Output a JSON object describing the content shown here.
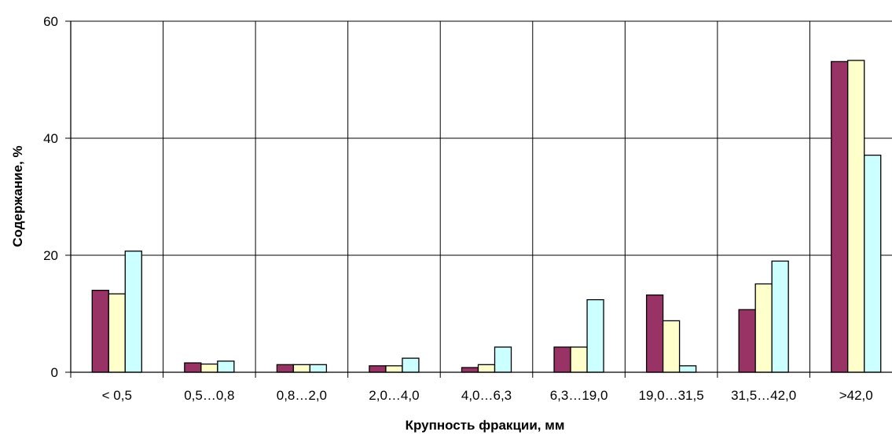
{
  "chart_data": {
    "type": "bar",
    "title": "",
    "xlabel": "Крупность фракции, мм",
    "ylabel": "Содержание, %",
    "ylim": [
      0,
      60
    ],
    "yticks": [
      "0",
      "20",
      "40",
      "60"
    ],
    "grid": true,
    "legend": "none",
    "categories": [
      "< 0,5",
      "0,5…0,8",
      "0,8…2,0",
      "2,0…4,0",
      "4,0…6,3",
      "6,3…19,0",
      "19,0…31,5",
      "31,5…42,0",
      ">42,0"
    ],
    "series": [
      {
        "color": "#993366",
        "values": [
          14,
          1.6,
          1.3,
          1.1,
          0.8,
          4.3,
          13.2,
          10.7,
          53.1
        ]
      },
      {
        "color": "#FFFFCC",
        "values": [
          13.4,
          1.4,
          1.3,
          1.1,
          1.3,
          4.3,
          8.8,
          15.1,
          53.3
        ]
      },
      {
        "color": "#CCFFFF",
        "values": [
          20.7,
          1.9,
          1.3,
          2.4,
          4.3,
          12.4,
          1.1,
          19,
          37.1
        ]
      }
    ]
  }
}
